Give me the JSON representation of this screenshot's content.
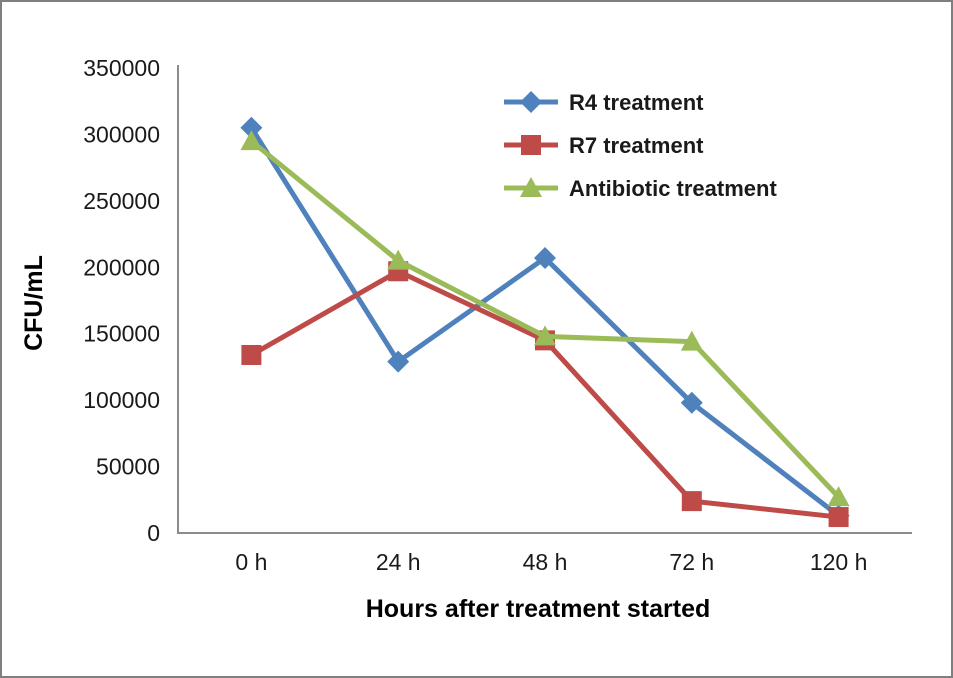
{
  "chart_data": {
    "type": "line",
    "title": "",
    "categories": [
      "0 h",
      "24 h",
      "48 h",
      "72 h",
      "120 h"
    ],
    "series": [
      {
        "name": "R4 treatment",
        "color": "#4F81BD",
        "marker": "diamond",
        "values": [
          305000,
          129000,
          207000,
          98000,
          13000
        ]
      },
      {
        "name": "R7 treatment",
        "color": "#BE4B48",
        "marker": "square",
        "values": [
          134000,
          197000,
          145000,
          24000,
          12000
        ]
      },
      {
        "name": "Antibiotic treatment",
        "color": "#9BBB59",
        "marker": "triangle",
        "values": [
          295000,
          205000,
          148000,
          144000,
          27000
        ]
      }
    ],
    "xlabel": "Hours after treatment started",
    "ylabel": "CFU/mL",
    "ylim": [
      0,
      350000
    ],
    "yticks": [
      "350000",
      "300000",
      "250000",
      "200000",
      "150000",
      "100000",
      "50000",
      "0"
    ],
    "grid": false,
    "legend_position": "upper-right-inside",
    "axis_color": "#8C8C8C",
    "text_color": "#1A1A1A"
  }
}
